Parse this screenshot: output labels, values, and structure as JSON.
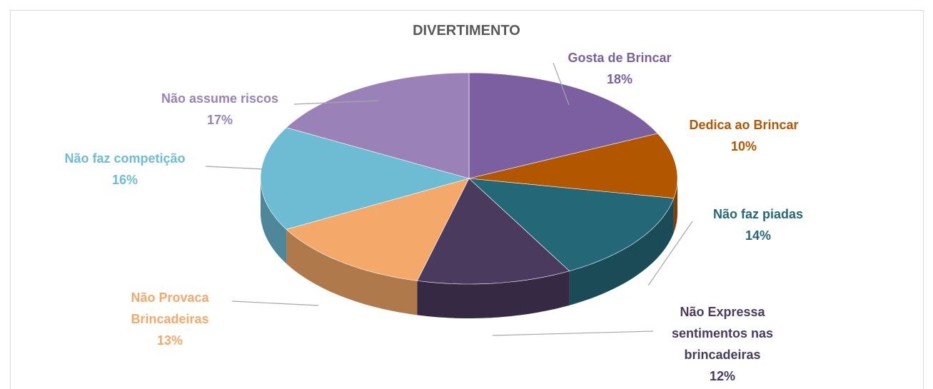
{
  "chart_data": {
    "type": "pie",
    "title": "DIVERTIMENTO",
    "categories": [
      "Gosta de Brincar",
      "Dedica ao Brincar",
      "Não faz piadas",
      "Não Expressa sentimentos nas brincadeiras",
      "Não Provaca Brincadeiras",
      "Não faz competição",
      "Não assume riscos"
    ],
    "values": [
      18,
      10,
      14,
      12,
      13,
      16,
      17
    ],
    "value_labels": [
      "18%",
      "10%",
      "14%",
      "12%",
      "13%",
      "16%",
      "17%"
    ],
    "colors": [
      "#7b5fa0",
      "#b35600",
      "#246878",
      "#4a3a5e",
      "#f4a86a",
      "#6dbcd4",
      "#9a82b8"
    ]
  }
}
